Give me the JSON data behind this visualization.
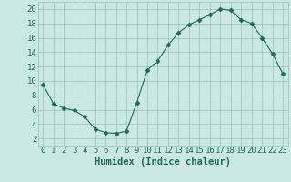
{
  "title": "",
  "xlabel": "Humidex (Indice chaleur)",
  "ylabel": "",
  "x": [
    0,
    1,
    2,
    3,
    4,
    5,
    6,
    7,
    8,
    9,
    10,
    11,
    12,
    13,
    14,
    15,
    16,
    17,
    18,
    19,
    20,
    21,
    22,
    23
  ],
  "y": [
    9.5,
    6.8,
    6.2,
    5.9,
    5.0,
    3.3,
    2.8,
    2.7,
    3.0,
    7.0,
    11.5,
    12.8,
    15.0,
    16.7,
    17.8,
    18.5,
    19.2,
    20.0,
    19.8,
    18.5,
    18.0,
    16.0,
    13.8,
    11.0
  ],
  "line_color": "#1a6b5a",
  "marker": "D",
  "marker_size": 2.5,
  "bg_color": "#cce8e4",
  "grid_color": "#9bbfba",
  "xlim": [
    -0.5,
    23.5
  ],
  "ylim": [
    1,
    21
  ],
  "yticks": [
    2,
    4,
    6,
    8,
    10,
    12,
    14,
    16,
    18,
    20
  ],
  "xticks": [
    0,
    1,
    2,
    3,
    4,
    5,
    6,
    7,
    8,
    9,
    10,
    11,
    12,
    13,
    14,
    15,
    16,
    17,
    18,
    19,
    20,
    21,
    22,
    23
  ],
  "tick_label_fontsize": 6.5,
  "xlabel_fontsize": 7.5,
  "label_color": "#1a6b5a"
}
